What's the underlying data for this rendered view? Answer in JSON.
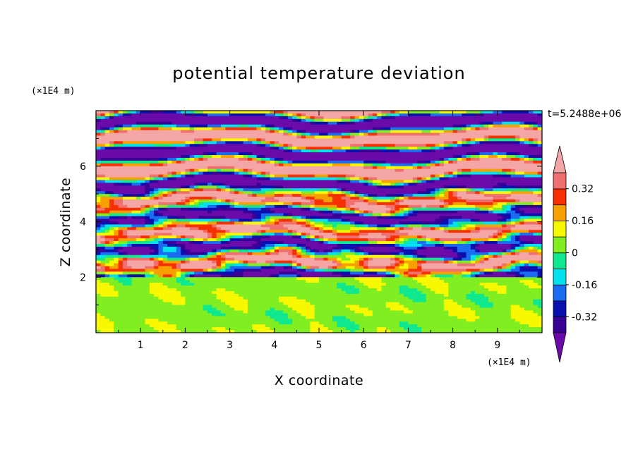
{
  "chart_data": {
    "type": "contour",
    "title": "potential temperature deviation",
    "xlabel": "X coordinate",
    "ylabel": "Z coordinate",
    "x_unit": "(×1E4 m)",
    "y_unit": "(×1E4 m)",
    "time_label": "t=5.2488e+06",
    "xlim": [
      0,
      10
    ],
    "ylim": [
      0,
      8
    ],
    "xticks": [
      1,
      2,
      3,
      4,
      5,
      6,
      7,
      8,
      9
    ],
    "yticks": [
      2,
      4,
      6
    ],
    "colorbar": {
      "levels": [
        -0.4,
        -0.32,
        -0.24,
        -0.16,
        -0.08,
        0,
        0.08,
        0.16,
        0.24,
        0.32,
        0.4
      ],
      "colors": [
        "#6a0aa8",
        "#3a0095",
        "#0a10b0",
        "#1a6cf0",
        "#00e2ee",
        "#10e890",
        "#80ee20",
        "#f8f800",
        "#f8a000",
        "#f83000",
        "#f07070",
        "#f4a6a6"
      ],
      "tick_labels": [
        "0.32",
        "0.16",
        "0",
        "-0.16",
        "-0.32"
      ],
      "tick_values": [
        0.32,
        0.16,
        0,
        -0.16,
        -0.32
      ]
    }
  }
}
